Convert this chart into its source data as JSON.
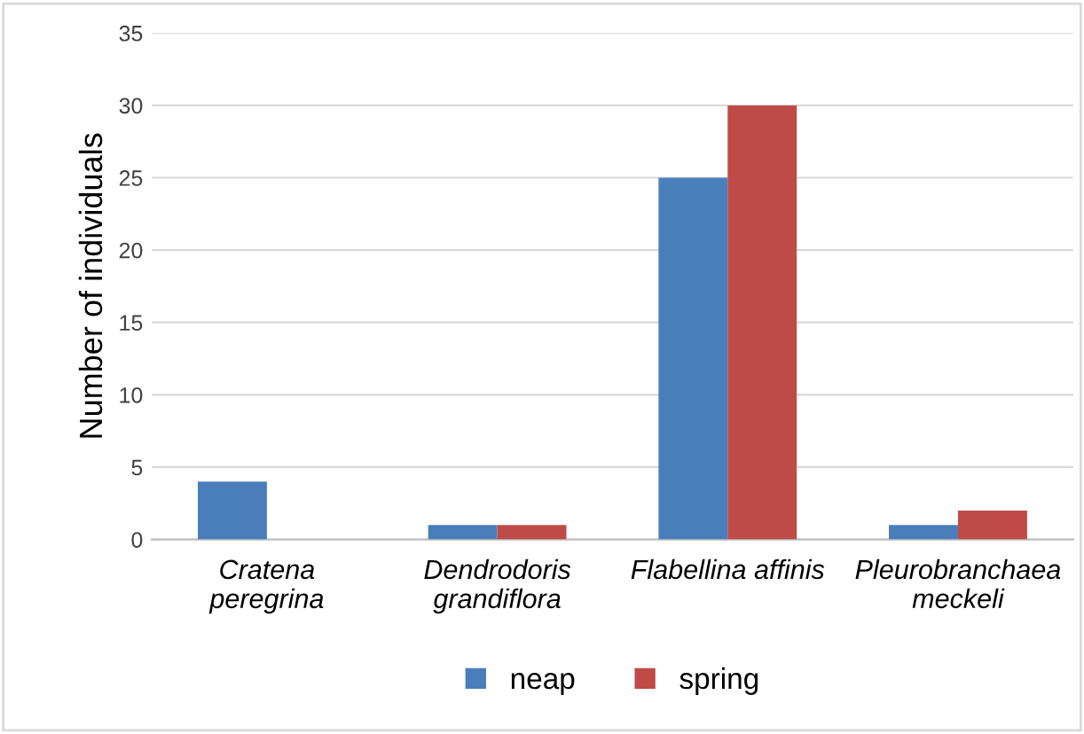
{
  "chart_data": {
    "type": "bar",
    "ylabel": "Number of individuals",
    "categories": [
      "Cratena\nperegrina",
      "Dendrodoris\ngrandiflora",
      "Flabellina affinis",
      "Pleurobranchaea\nmeckeli"
    ],
    "series": [
      {
        "name": "neap",
        "color": "#4a7ebb",
        "values": [
          4,
          1,
          25,
          1
        ]
      },
      {
        "name": "spring",
        "color": "#be4b48",
        "values": [
          0,
          1,
          30,
          2
        ]
      }
    ],
    "ylim": [
      0,
      35
    ],
    "yticks": [
      0,
      5,
      10,
      15,
      20,
      25,
      30,
      35
    ],
    "grid": "y",
    "legend": "bottom"
  }
}
